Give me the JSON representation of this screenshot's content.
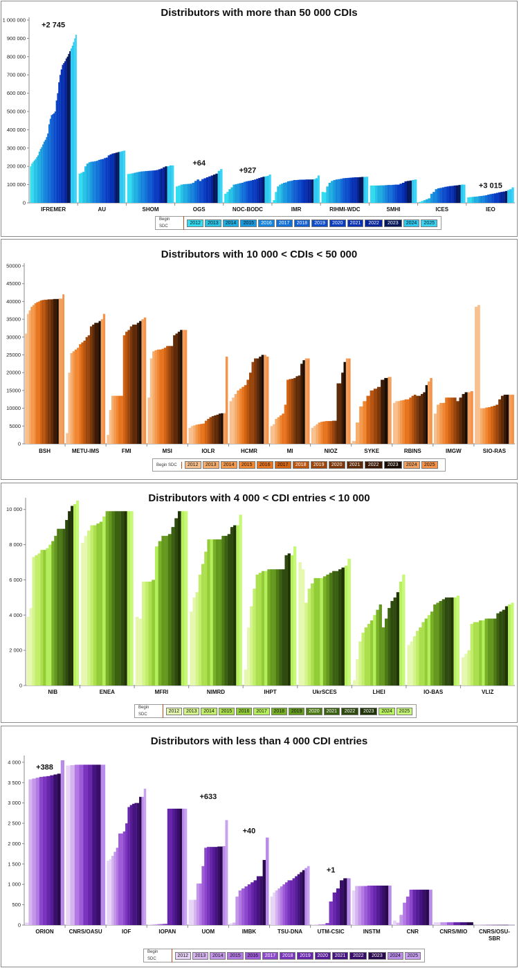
{
  "chart_data": [
    {
      "type": "bar",
      "title": "Distributors with more than 50 000 CDIs",
      "ylim": [
        0,
        1000000
      ],
      "yticks": [
        0,
        100000,
        200000,
        300000,
        400000,
        500000,
        600000,
        700000,
        800000,
        900000,
        1000000
      ],
      "ytick_labels": [
        "0",
        "100 000",
        "200 000",
        "300 000",
        "400 000",
        "500 000",
        "600 000",
        "700 000",
        "800 000",
        "900 000",
        "1 000 000"
      ],
      "legend_title": "Begin SDC",
      "legend": [
        "2012",
        "2013",
        "2014",
        "2015",
        "2016",
        "2017",
        "2018",
        "2019",
        "2020",
        "2021",
        "2022",
        "2023",
        "2024",
        "2025"
      ],
      "palette": [
        "#33dcf0",
        "#29c3e6",
        "#20aee2",
        "#1b99df",
        "#1684dc",
        "#1370d8",
        "#105ed2",
        "#0d4ccb",
        "#0a3cc2",
        "#0730b2",
        "#06249a",
        "#04185a",
        "#2ec8f0",
        "#39d4f6"
      ],
      "categories": [
        "IFREMER",
        "AU",
        "SHOM",
        "OGS",
        "NOC-BODC",
        "IMR",
        "RIHMI-WDC",
        "SMHI",
        "ICES",
        "IEO"
      ],
      "series": [
        [
          200000,
          215000,
          224000,
          232000,
          240000,
          250000,
          260000,
          280000,
          295000,
          305000,
          320000,
          335000,
          345000,
          360000,
          380000,
          430000,
          460000,
          480000,
          485000,
          490000,
          500000,
          560000,
          600000,
          660000,
          700000,
          730000,
          755000,
          765000,
          775000,
          790000,
          800000,
          815000,
          830000,
          845000,
          860000,
          880000,
          900000,
          920000
        ],
        [
          160000,
          165000,
          170000,
          200000,
          215000,
          222000,
          225000,
          226000,
          228000,
          230000,
          235000,
          238000,
          240000,
          245000,
          248000,
          260000,
          265000,
          270000,
          272000,
          275000,
          278000,
          280000,
          283000,
          286000
        ],
        [
          158000,
          160000,
          162000,
          165000,
          168000,
          170000,
          172000,
          173000,
          174000,
          175000,
          176000,
          177000,
          178000,
          180000,
          184000,
          188000,
          195000,
          200000,
          200000,
          205000,
          205000
        ],
        [
          90000,
          95000,
          100000,
          102000,
          103000,
          104000,
          105000,
          110000,
          120000,
          128000,
          120000,
          130000,
          135000,
          140000,
          145000,
          150000,
          155000,
          160000,
          175000,
          185000
        ],
        [
          50000,
          60000,
          75000,
          85000,
          100000,
          102000,
          105000,
          108000,
          110000,
          115000,
          118000,
          120000,
          122000,
          125000,
          128000,
          132000,
          136000,
          140000,
          143000,
          145000,
          148000,
          155000
        ],
        [
          15000,
          60000,
          90000,
          100000,
          105000,
          110000,
          112000,
          118000,
          120000,
          122000,
          125000,
          125000,
          126000,
          127000,
          127000,
          127000,
          128000,
          128000,
          128000,
          128000,
          130000,
          135000,
          150000
        ],
        [
          60000,
          58000,
          90000,
          110000,
          120000,
          125000,
          128000,
          130000,
          132000,
          135000,
          136000,
          137000,
          138000,
          139000,
          140000,
          140000,
          141000,
          142000,
          142000,
          143000
        ],
        [
          95000,
          95000,
          95000,
          95000,
          96000,
          96000,
          97000,
          98000,
          98000,
          99000,
          100000,
          100000,
          105000,
          110000,
          118000,
          120000,
          122000,
          125000,
          128000
        ],
        [
          5000,
          10000,
          15000,
          20000,
          25000,
          50000,
          60000,
          75000,
          80000,
          82000,
          85000,
          88000,
          90000,
          92000,
          93000,
          95000,
          96000,
          98000,
          100000,
          100000
        ],
        [
          30000,
          32000,
          33000,
          34000,
          35000,
          37000,
          38000,
          40000,
          42000,
          45000,
          48000,
          50000,
          52000,
          55000,
          58000,
          60000,
          62000,
          65000,
          70000,
          75000,
          85000
        ]
      ],
      "annotations": [
        {
          "text": "+2 745",
          "category": "IFREMER",
          "y": 960000
        },
        {
          "text": "+64",
          "category": "OGS",
          "y": 205000
        },
        {
          "text": "+927",
          "category": "NOC-BODC",
          "y": 165000
        },
        {
          "text": "+3 015",
          "category": "IEO",
          "y": 82000
        }
      ]
    },
    {
      "type": "bar",
      "title": "Distributors with 10 000 < CDIs < 50 000",
      "ylim": [
        0,
        50000
      ],
      "yticks": [
        0,
        5000,
        10000,
        15000,
        20000,
        25000,
        30000,
        35000,
        40000,
        45000,
        50000
      ],
      "ytick_labels": [
        "0",
        "5000",
        "10000",
        "15000",
        "20000",
        "25000",
        "30000",
        "35000",
        "40000",
        "45000",
        "50000"
      ],
      "legend_title": "Begin SDC",
      "legend": [
        "2012",
        "2013",
        "2014",
        "2015",
        "2016",
        "2017",
        "2018",
        "2019",
        "2020",
        "2021",
        "2022",
        "2023",
        "2024",
        "2025"
      ],
      "palette": [
        "#f8c08e",
        "#f6ae6e",
        "#f39a4e",
        "#f08732",
        "#e7741e",
        "#d26414",
        "#b85510",
        "#9a460d",
        "#7c380a",
        "#5e2a08",
        "#3c1a05",
        "#1a0d03",
        "#f0a060",
        "#f5934a"
      ],
      "categories": [
        "BSH",
        "METU-IMS",
        "FMI",
        "MSI",
        "IOLR",
        "HCMR",
        "MI",
        "NIOZ",
        "SYKE",
        "RBINS",
        "IMGW",
        "SIO-RAS"
      ],
      "series": [
        [
          31000,
          36500,
          37500,
          38500,
          39000,
          39500,
          39800,
          40000,
          40300,
          40400,
          40500,
          40500,
          40600,
          40600,
          40600,
          40700,
          40700,
          40700,
          40800,
          40800,
          42000
        ],
        [
          3000,
          20000,
          25500,
          26000,
          26500,
          27000,
          28000,
          28500,
          29000,
          30000,
          30500,
          33000,
          33500,
          34000,
          34000,
          34500,
          35000,
          36500
        ],
        [
          2500,
          9500,
          13500,
          13500,
          13500,
          13500,
          13500,
          30500,
          31500,
          32000,
          33000,
          33500,
          33500,
          34000,
          34500,
          35000,
          35500
        ],
        [
          13000,
          24000,
          26000,
          26300,
          26500,
          26500,
          26700,
          27000,
          27500,
          27500,
          27500,
          30500,
          31000,
          31500,
          32000,
          32000,
          32000
        ],
        [
          4500,
          5000,
          5200,
          5400,
          5500,
          5600,
          5700,
          6500,
          7000,
          7500,
          7800,
          8000,
          8200,
          8500,
          8600,
          8600,
          24500
        ],
        [
          12000,
          13000,
          14000,
          15000,
          15500,
          16000,
          16500,
          18000,
          20000,
          23000,
          24000,
          24000,
          24500,
          25000,
          25000,
          24500
        ],
        [
          5000,
          5500,
          7000,
          7500,
          8000,
          8500,
          11000,
          18000,
          18200,
          18300,
          18500,
          19000,
          19200,
          22500,
          23500,
          24000,
          24000
        ],
        [
          4500,
          5000,
          5500,
          6000,
          6200,
          6300,
          6400,
          6400,
          6400,
          6500,
          6500,
          17000,
          17000,
          20000,
          23000,
          24000,
          24000
        ],
        [
          800,
          6000,
          10500,
          12000,
          13500,
          15000,
          15500,
          16000,
          18000,
          18500,
          18800
        ],
        [
          11500,
          12000,
          12000,
          12200,
          12300,
          12500,
          12500,
          13000,
          13500,
          13800,
          13500,
          13500,
          14000,
          14500,
          16500,
          17500,
          18500
        ],
        [
          8500,
          11000,
          11500,
          11500,
          13000,
          13000,
          13000,
          13000,
          12000,
          13000,
          14000,
          14500,
          14500,
          14800
        ],
        [
          38500,
          39000,
          10000,
          10000,
          10200,
          10300,
          10500,
          10700,
          11000,
          12500,
          13500,
          13800,
          13800,
          13800,
          13800
        ]
      ]
    },
    {
      "type": "bar",
      "title": "Distributors  with 4 000 < CDI entries < 10 000",
      "ylim": [
        0,
        10500
      ],
      "yticks": [
        0,
        2000,
        4000,
        6000,
        8000,
        10000
      ],
      "ytick_labels": [
        "0",
        "2 000",
        "4 000",
        "6 000",
        "8 000",
        "10 000"
      ],
      "legend_title": "Begin SDC",
      "legend": [
        "2012",
        "2013",
        "2014",
        "2015",
        "2016",
        "2017",
        "2018",
        "2019",
        "2020",
        "2021",
        "2022",
        "2023",
        "2024",
        "2025"
      ],
      "palette": [
        "#e6f8b0",
        "#d4f58c",
        "#c2ee6c",
        "#acdf4e",
        "#92cc36",
        "#b4ee5c",
        "#78b026",
        "#64981e",
        "#4e7a16",
        "#3c6012",
        "#2e4a0e",
        "#203408",
        "#b8f060",
        "#c8f878"
      ],
      "categories": [
        "NIB",
        "ENEA",
        "MFRI",
        "NIMRD",
        "IHPT",
        "UkrSCES",
        "LHEI",
        "IO-BAS",
        "VLIZ"
      ],
      "series": [
        [
          3900,
          4400,
          7300,
          7400,
          7500,
          7700,
          7700,
          7800,
          8000,
          8200,
          8500,
          8900,
          8900,
          8900,
          9400,
          9900,
          10200,
          10300,
          10500
        ],
        [
          8100,
          8500,
          8800,
          9100,
          9100,
          9200,
          9300,
          9600,
          9900,
          9900,
          9900,
          9900,
          9900,
          9900,
          9900,
          9900,
          9900
        ],
        [
          3900,
          3800,
          5900,
          5900,
          5900,
          6000,
          7900,
          8200,
          8500,
          8500,
          8600,
          9000,
          9500,
          9900,
          9900,
          9900
        ],
        [
          4200,
          5000,
          5300,
          6300,
          6900,
          7600,
          8300,
          8300,
          8300,
          8300,
          8300,
          8500,
          8500,
          8600,
          9000,
          9100,
          9100,
          9700
        ],
        [
          900,
          3300,
          4500,
          5500,
          6300,
          6400,
          6500,
          6500,
          6600,
          6600,
          6600,
          6600,
          6600,
          6600,
          7400,
          7500,
          7400,
          7900
        ],
        [
          7000,
          6600,
          4700,
          5500,
          5800,
          6100,
          6100,
          6100,
          6200,
          6300,
          6400,
          6500,
          6500,
          6600,
          6700,
          6800,
          7200
        ],
        [
          300,
          1500,
          2500,
          3000,
          3300,
          3500,
          3700,
          4000,
          4300,
          4600,
          3300,
          3800,
          4400,
          4800,
          5000,
          5300,
          5900,
          6300
        ],
        [
          2300,
          2500,
          2800,
          3100,
          3300,
          3600,
          3800,
          4000,
          4200,
          4600,
          4700,
          4800,
          4900,
          5000,
          5000,
          5000,
          5000,
          5100
        ],
        [
          1600,
          1800,
          2000,
          3500,
          3600,
          3600,
          3700,
          3700,
          3800,
          3800,
          3800,
          3800,
          4100,
          4200,
          4300,
          4500,
          4600,
          4700
        ]
      ]
    },
    {
      "type": "bar",
      "title": "Distributors  with less than 4 000 CDI entries",
      "ylim": [
        0,
        4100
      ],
      "yticks": [
        0,
        500,
        1000,
        1500,
        2000,
        2500,
        3000,
        3500,
        4000
      ],
      "ytick_labels": [
        "0",
        "500",
        "1 000",
        "1 500",
        "2 000",
        "2 500",
        "3 000",
        "3 500",
        "4 000"
      ],
      "legend_title": "Begin SDC",
      "legend": [
        "2012",
        "2013",
        "2014",
        "2015",
        "2016",
        "2017",
        "2018",
        "2019",
        "2020",
        "2021",
        "2022",
        "2023",
        "2024",
        "2025"
      ],
      "palette": [
        "#e8d4f6",
        "#d6b4f0",
        "#c496ea",
        "#b27ae2",
        "#9e5cd8",
        "#8c48cc",
        "#7a34be",
        "#6826ac",
        "#561c98",
        "#461480",
        "#380e68",
        "#2a0a4e",
        "#b88ce8",
        "#c8a2f0"
      ],
      "categories": [
        "ORION",
        "CNRS/OASU",
        "IOF",
        "IOPAN",
        "UOM",
        "IMBK",
        "TSU-DNA",
        "UTM-CSIC",
        "INSTM",
        "CNR",
        "CNRS/MIO",
        "CNRS/OSU-SBR"
      ],
      "series": [
        [
          60,
          3580,
          3600,
          3620,
          3640,
          3650,
          3660,
          3680,
          3700,
          3720,
          4050
        ],
        [
          3920,
          3930,
          3940,
          3940,
          3940,
          3940,
          3940,
          3940,
          3940
        ],
        [
          1580,
          1620,
          1700,
          1800,
          1900,
          2250,
          2250,
          2300,
          2500,
          2900,
          2950,
          2980,
          3000,
          3000,
          3150,
          3150,
          3350
        ],
        [
          10,
          20,
          20,
          20,
          25,
          25,
          30,
          30,
          2860,
          2860,
          2860,
          2860,
          2860,
          2860,
          2860,
          2860
        ],
        [
          620,
          620,
          620,
          1020,
          1020,
          1450,
          1900,
          1920,
          1920,
          1920,
          1920,
          1930,
          1930,
          1940,
          2580
        ],
        [
          40,
          60,
          700,
          850,
          900,
          950,
          1000,
          1050,
          1100,
          1200,
          1200,
          1600,
          2150
        ],
        [
          700,
          800,
          850,
          900,
          950,
          1000,
          1050,
          1100,
          1100,
          1150,
          1200,
          1250,
          1300,
          1350,
          1400,
          1450
        ],
        [
          10,
          10,
          20,
          20,
          50,
          580,
          800,
          900,
          1100,
          1150,
          1150
        ],
        [
          850,
          960,
          960,
          960,
          960,
          970,
          970,
          970,
          970,
          970,
          970,
          970,
          970
        ],
        [
          110,
          60,
          250,
          550,
          700,
          870,
          870,
          870,
          870,
          870,
          870,
          870
        ],
        [
          70,
          70,
          70,
          70,
          70,
          70
        ],
        [
          5,
          5,
          5,
          5,
          5,
          5,
          5
        ]
      ],
      "annotations": [
        {
          "text": "+388",
          "category": "ORION",
          "y": 3820
        },
        {
          "text": "+633",
          "category": "UOM",
          "y": 3100
        },
        {
          "text": "+40",
          "category": "IMBK",
          "y": 2250
        },
        {
          "text": "+1",
          "category": "UTM-CSIC",
          "y": 1290
        }
      ]
    }
  ]
}
